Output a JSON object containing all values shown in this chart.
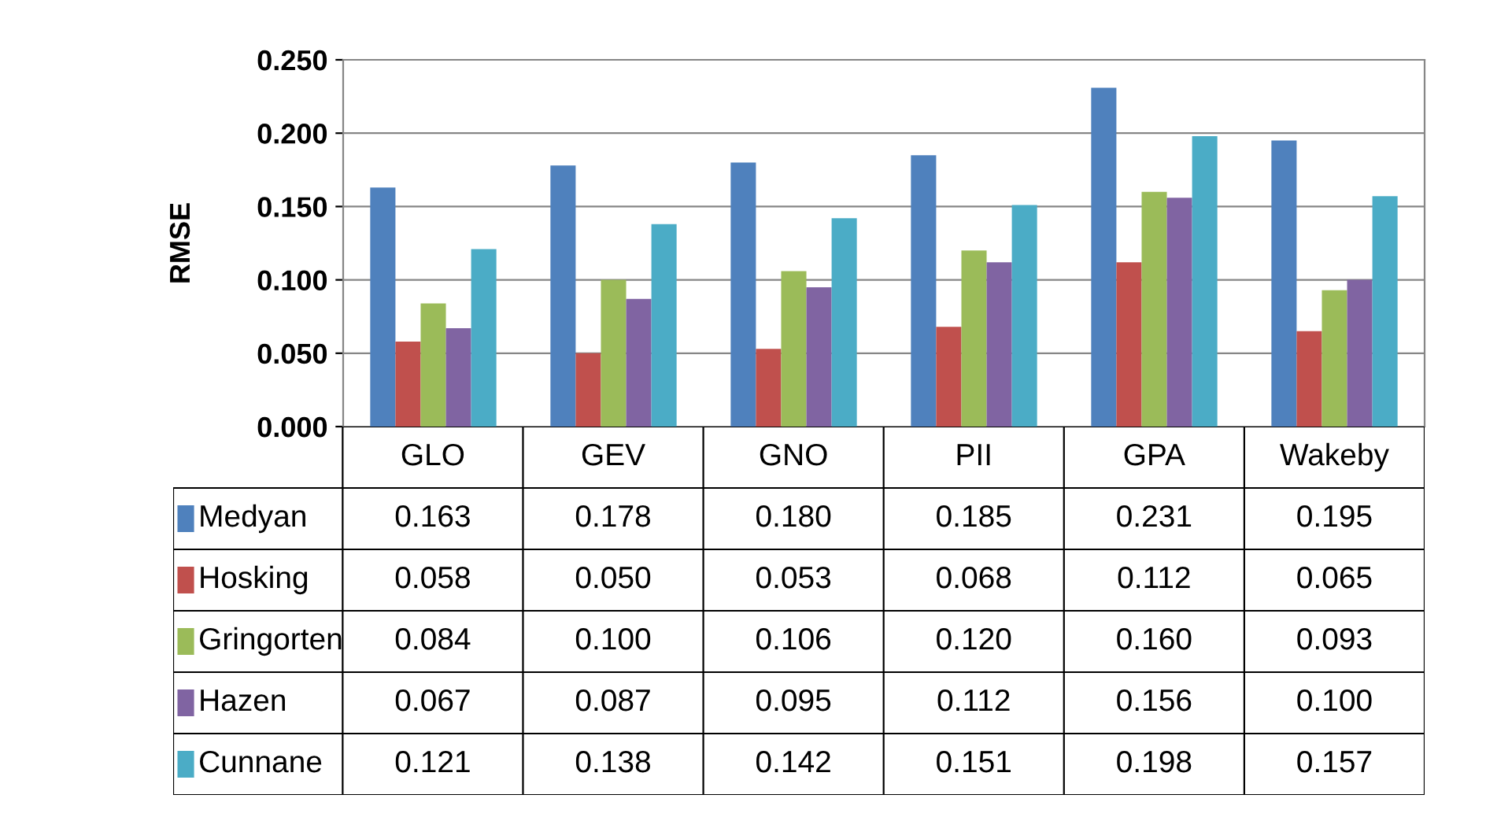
{
  "chart_data": {
    "type": "bar",
    "ylabel": "RMSE",
    "categories": [
      "GLO",
      "GEV",
      "GNO",
      "PII",
      "GPA",
      "Wakeby"
    ],
    "ylim": [
      0,
      0.25
    ],
    "yticks": [
      {
        "value": 0,
        "label": "0.000"
      },
      {
        "value": 0.05,
        "label": "0.050"
      },
      {
        "value": 0.1,
        "label": "0.100"
      },
      {
        "value": 0.15,
        "label": "0.150"
      },
      {
        "value": 0.2,
        "label": "0.200"
      },
      {
        "value": 0.25,
        "label": "0.250"
      }
    ],
    "grid": "y",
    "legend": "bottom",
    "series": [
      {
        "name": "Medyan",
        "color": "#4f81bd",
        "values": [
          0.163,
          0.178,
          0.18,
          0.185,
          0.231,
          0.195
        ],
        "value_labels": [
          "0.163",
          "0.178",
          "0.180",
          "0.185",
          "0.231",
          "0.195"
        ]
      },
      {
        "name": "Hosking",
        "color": "#c0504d",
        "values": [
          0.058,
          0.05,
          0.053,
          0.068,
          0.112,
          0.065
        ],
        "value_labels": [
          "0.058",
          "0.050",
          "0.053",
          "0.068",
          "0.112",
          "0.065"
        ]
      },
      {
        "name": "Gringorten",
        "color": "#9bbb59",
        "values": [
          0.084,
          0.1,
          0.106,
          0.12,
          0.16,
          0.093
        ],
        "value_labels": [
          "0.084",
          "0.100",
          "0.106",
          "0.120",
          "0.160",
          "0.093"
        ]
      },
      {
        "name": "Hazen",
        "color": "#8064a2",
        "values": [
          0.067,
          0.087,
          0.095,
          0.112,
          0.156,
          0.1
        ],
        "value_labels": [
          "0.067",
          "0.087",
          "0.095",
          "0.112",
          "0.156",
          "0.100"
        ]
      },
      {
        "name": "Cunnane",
        "color": "#4bacc6",
        "values": [
          0.121,
          0.138,
          0.142,
          0.151,
          0.198,
          0.157
        ],
        "value_labels": [
          "0.121",
          "0.138",
          "0.142",
          "0.151",
          "0.198",
          "0.157"
        ]
      }
    ]
  }
}
